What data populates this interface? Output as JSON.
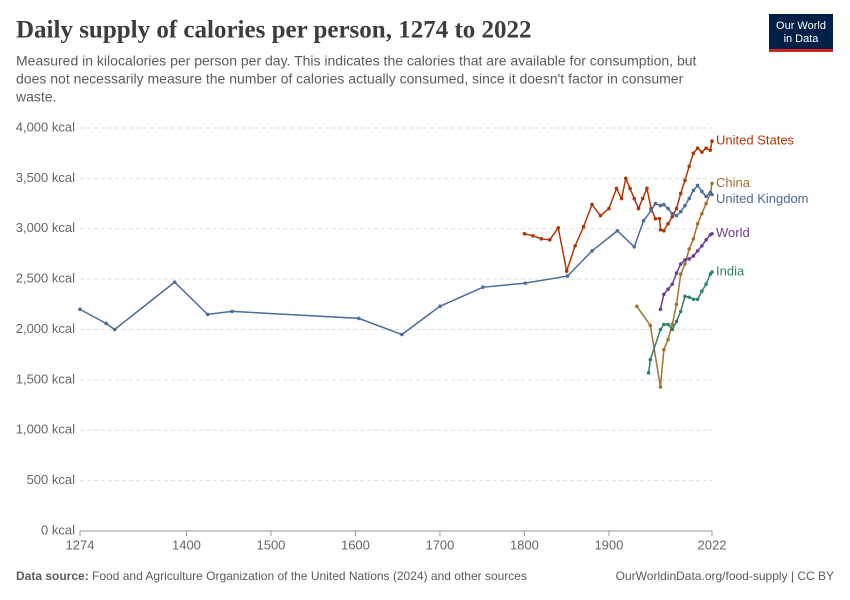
{
  "chart_data": {
    "type": "line",
    "title": "Daily supply of calories per person, 1274 to 2022",
    "subtitle": [
      "Measured in kilocalories per person per day. This indicates the calories that are available for consumption, but",
      "does not necessarily measure the number of calories actually consumed, since it doesn't factor in consumer",
      "waste."
    ],
    "logo": [
      "Our World",
      "in Data"
    ],
    "source_label": "Data source:",
    "source": "Food and Agriculture Organization of the United Nations (2024) and other sources",
    "credit": "OurWorldinData.org/food-supply | CC BY",
    "xlim": [
      1274,
      2022
    ],
    "xticks": [
      1274,
      1400,
      1500,
      1600,
      1700,
      1800,
      1900,
      2022
    ],
    "ylim": [
      0,
      4000
    ],
    "yticks": [
      {
        "value": 0,
        "label": "0 kcal"
      },
      {
        "value": 500,
        "label": "500 kcal"
      },
      {
        "value": 1000,
        "label": "1,000 kcal"
      },
      {
        "value": 1500,
        "label": "1,500 kcal"
      },
      {
        "value": 2000,
        "label": "2,000 kcal"
      },
      {
        "value": 2500,
        "label": "2,500 kcal"
      },
      {
        "value": 3000,
        "label": "3,000 kcal"
      },
      {
        "value": 3500,
        "label": "3,500 kcal"
      },
      {
        "value": 4000,
        "label": "4,000 kcal"
      }
    ],
    "grid": true,
    "series": [
      {
        "name": "United States",
        "color": "#b13507",
        "x": [
          1800,
          1810,
          1820,
          1830,
          1840,
          1850,
          1860,
          1870,
          1880,
          1890,
          1900,
          1909,
          1915,
          1920,
          1925,
          1930,
          1935,
          1940,
          1945,
          1950,
          1955,
          1960,
          1961,
          1965,
          1970,
          1975,
          1980,
          1985,
          1990,
          1995,
          2000,
          2005,
          2010,
          2015,
          2020,
          2022
        ],
        "values": [
          2950,
          2930,
          2900,
          2890,
          3010,
          2580,
          2830,
          3020,
          3240,
          3130,
          3200,
          3400,
          3300,
          3500,
          3400,
          3300,
          3200,
          3300,
          3400,
          3200,
          3100,
          3100,
          2990,
          2980,
          3050,
          3120,
          3200,
          3350,
          3480,
          3620,
          3750,
          3800,
          3760,
          3800,
          3780,
          3870
        ]
      },
      {
        "name": "China",
        "color": "#a2722f",
        "x": [
          1933,
          1949,
          1961,
          1965,
          1970,
          1975,
          1980,
          1985,
          1990,
          1995,
          2000,
          2005,
          2010,
          2015,
          2020,
          2022
        ],
        "values": [
          2230,
          2040,
          1430,
          1800,
          1900,
          2050,
          2250,
          2550,
          2650,
          2800,
          2900,
          3050,
          3150,
          3250,
          3350,
          3450
        ]
      },
      {
        "name": "United Kingdom",
        "color": "#4c6a9c",
        "x": [
          1274,
          1305,
          1315,
          1386,
          1425,
          1454,
          1604,
          1655,
          1700,
          1751,
          1801,
          1851,
          1880,
          1910,
          1930,
          1941,
          1950,
          1955,
          1961,
          1965,
          1970,
          1975,
          1980,
          1985,
          1990,
          1995,
          2000,
          2005,
          2010,
          2015,
          2020,
          2022
        ],
        "values": [
          2200,
          2060,
          2000,
          2470,
          2150,
          2180,
          2110,
          1950,
          2230,
          2420,
          2460,
          2530,
          2780,
          2980,
          2820,
          3080,
          3180,
          3250,
          3230,
          3240,
          3200,
          3150,
          3130,
          3170,
          3230,
          3300,
          3380,
          3430,
          3370,
          3320,
          3360,
          3340
        ]
      },
      {
        "name": "World",
        "color": "#6d3e91",
        "x": [
          1961,
          1965,
          1970,
          1975,
          1980,
          1985,
          1990,
          1995,
          2000,
          2005,
          2010,
          2015,
          2020,
          2022
        ],
        "values": [
          2200,
          2350,
          2400,
          2450,
          2560,
          2650,
          2690,
          2700,
          2730,
          2780,
          2830,
          2890,
          2940,
          2950
        ]
      },
      {
        "name": "India",
        "color": "#2c8465",
        "x": [
          1947,
          1949,
          1961,
          1965,
          1970,
          1975,
          1980,
          1985,
          1990,
          1995,
          2000,
          2005,
          2010,
          2015,
          2020,
          2022
        ],
        "values": [
          1570,
          1700,
          2000,
          2050,
          2050,
          2000,
          2080,
          2180,
          2330,
          2320,
          2300,
          2300,
          2380,
          2450,
          2550,
          2570
        ]
      }
    ]
  }
}
